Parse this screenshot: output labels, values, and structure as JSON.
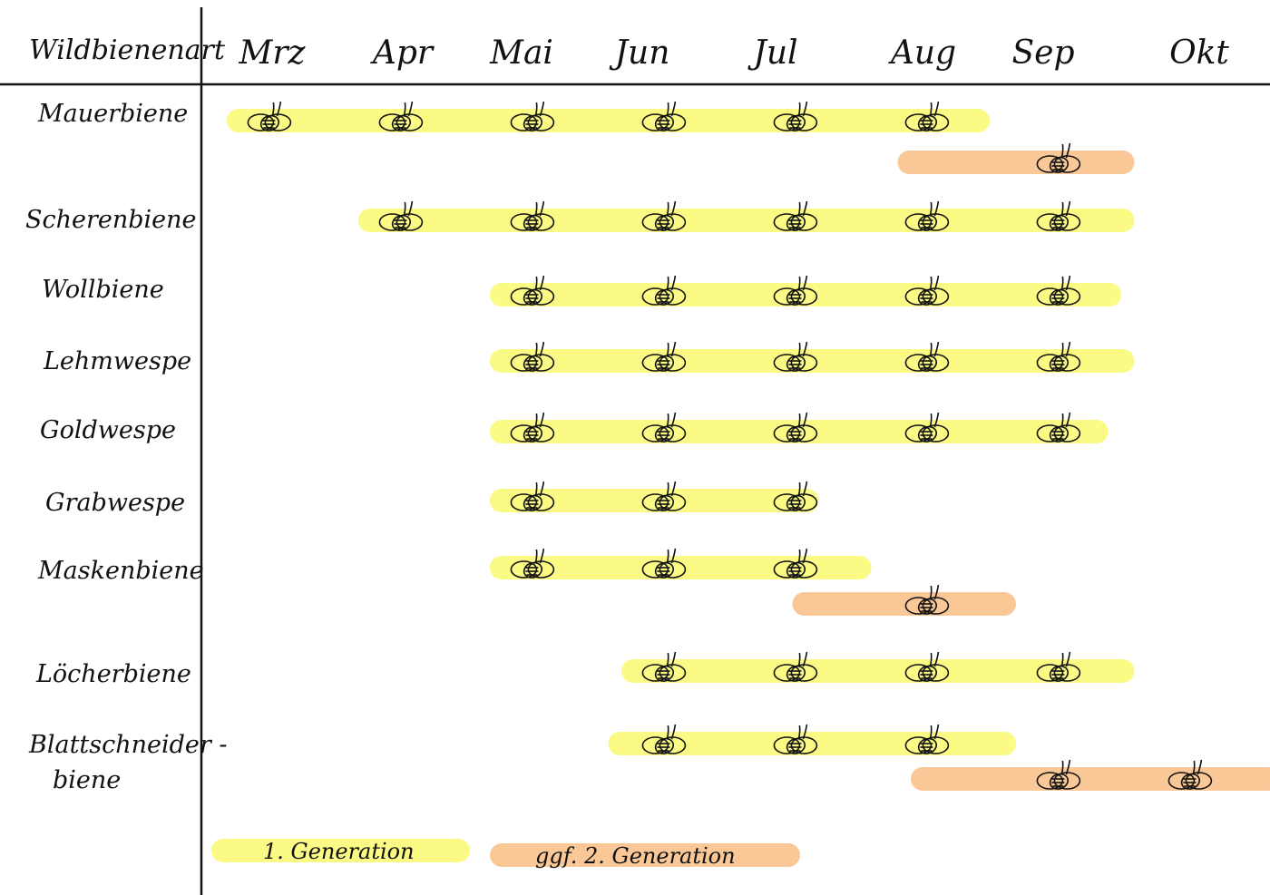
{
  "chart_data": {
    "type": "gantt",
    "row_header": "Wildbienenart",
    "months": [
      "Mrz",
      "Apr",
      "Mai",
      "Jun",
      "Jul",
      "Aug",
      "Sep",
      "Okt"
    ],
    "series": [
      {
        "key": "gen1",
        "name": "1. Generation",
        "color": "#fafa84"
      },
      {
        "key": "gen2",
        "name": "ggf. 2. Generation",
        "color": "#f9c896"
      }
    ],
    "rows": [
      {
        "label": [
          "Mauerbiene"
        ],
        "gen1": [
          0.0,
          5.8
        ],
        "gen2": [
          5.1,
          6.9
        ]
      },
      {
        "label": [
          "Scherenbiene"
        ],
        "gen1": [
          1.0,
          6.9
        ]
      },
      {
        "label": [
          "Wollbiene"
        ],
        "gen1": [
          2.0,
          6.8
        ]
      },
      {
        "label": [
          "Lehmwespe"
        ],
        "gen1": [
          2.0,
          6.9
        ]
      },
      {
        "label": [
          "Goldwespe"
        ],
        "gen1": [
          2.0,
          6.7
        ]
      },
      {
        "label": [
          "Grabwespe"
        ],
        "gen1": [
          2.0,
          4.5
        ]
      },
      {
        "label": [
          "Maskenbiene"
        ],
        "gen1": [
          2.0,
          4.9
        ],
        "gen2": [
          4.3,
          6.0
        ]
      },
      {
        "label": [
          "Löcherbiene"
        ],
        "gen1": [
          3.0,
          6.9
        ]
      },
      {
        "label": [
          "Blattschneider -",
          "biene"
        ],
        "gen1": [
          2.9,
          6.0
        ],
        "gen2": [
          5.2,
          8.0
        ]
      }
    ]
  }
}
